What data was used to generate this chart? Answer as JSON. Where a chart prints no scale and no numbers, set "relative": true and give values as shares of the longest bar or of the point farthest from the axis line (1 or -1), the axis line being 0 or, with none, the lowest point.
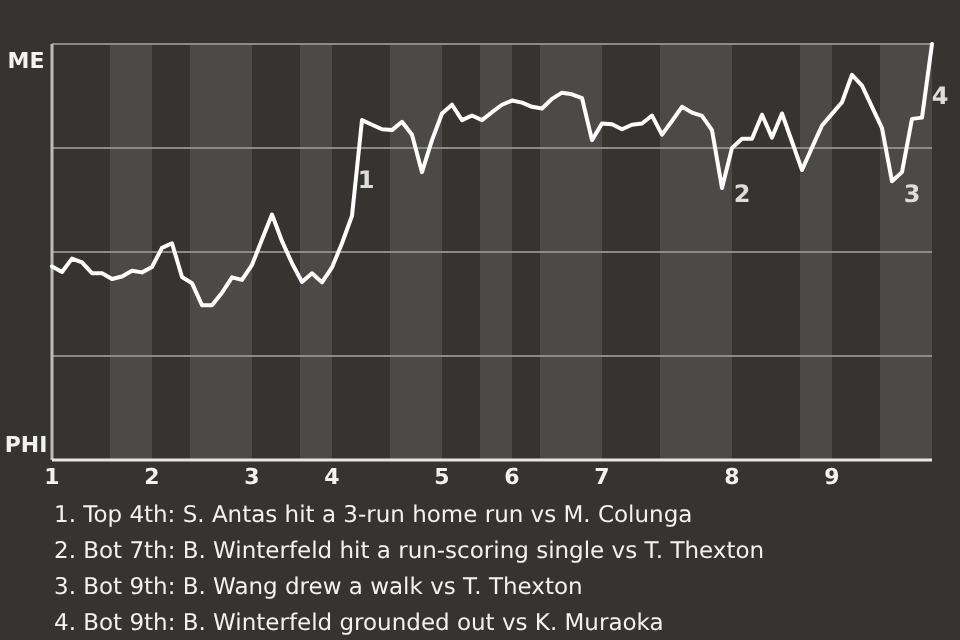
{
  "chart_data": {
    "type": "line",
    "relative": true,
    "categories": [
      "1",
      null,
      null,
      null,
      null,
      null,
      null,
      null,
      null,
      null,
      "2",
      null,
      null,
      null,
      null,
      null,
      null,
      null,
      null,
      null,
      "3",
      null,
      null,
      null,
      null,
      null,
      null,
      null,
      "4",
      null,
      null,
      null,
      null,
      null,
      null,
      null,
      null,
      null,
      null,
      "5",
      null,
      null,
      null,
      null,
      null,
      null,
      "6",
      null,
      null,
      null,
      null,
      null,
      null,
      null,
      null,
      "7",
      null,
      null,
      null,
      null,
      null,
      null,
      null,
      null,
      null,
      null,
      null,
      null,
      "8",
      null,
      null,
      null,
      null,
      null,
      null,
      null,
      null,
      null,
      "9",
      null,
      null,
      null,
      null,
      null,
      null,
      null,
      null,
      null,
      null
    ],
    "series": [
      {
        "color": "#ffffff",
        "values": [
          0.465,
          0.452,
          0.484,
          0.475,
          0.449,
          0.449,
          0.435,
          0.441,
          0.455,
          0.451,
          0.464,
          0.51,
          0.521,
          0.44,
          0.425,
          0.372,
          0.372,
          0.402,
          0.439,
          0.433,
          0.469,
          0.53,
          0.59,
          0.526,
          0.473,
          0.428,
          0.449,
          0.427,
          0.463,
          0.521,
          0.587,
          0.817,
          0.806,
          0.795,
          0.793,
          0.813,
          0.782,
          0.692,
          0.769,
          0.833,
          0.854,
          0.817,
          0.828,
          0.817,
          0.836,
          0.854,
          0.864,
          0.859,
          0.849,
          0.845,
          0.868,
          0.883,
          0.879,
          0.87,
          0.769,
          0.809,
          0.807,
          0.795,
          0.806,
          0.809,
          0.828,
          0.782,
          0.815,
          0.849,
          0.835,
          0.827,
          0.793,
          0.654,
          0.75,
          0.772,
          0.772,
          0.83,
          0.775,
          0.833,
          0.765,
          0.697,
          0.751,
          0.804,
          0.832,
          0.86,
          0.926,
          0.9,
          0.849,
          0.798,
          0.67,
          0.692,
          0.82,
          0.823,
          1
        ],
        "name": null
      }
    ],
    "marker": "none",
    "ref_lines": [
      {
        "axis": "y",
        "value": 0.25,
        "color": "#8a8a87"
      },
      {
        "axis": "y",
        "value": 0.5,
        "color": "#8a8a87"
      },
      {
        "axis": "y",
        "value": 0.75,
        "color": "#8a8a87"
      },
      {
        "axis": "y",
        "value": 1,
        "color": "#8a8a87"
      }
    ],
    "annotations": [
      "ME",
      "PHI",
      "1",
      "2",
      "3",
      "4",
      "1. Top 4th: S. Antas hit a 3-run home run vs M. Colunga",
      "2. Bot 7th: B. Winterfeld hit a run-scoring single vs T. Thexton",
      "3. Bot 9th: B. Wang drew a walk vs T. Thexton",
      "4. Bot 9th: B. Winterfeld grounded out vs K. Muraoka"
    ]
  }
}
